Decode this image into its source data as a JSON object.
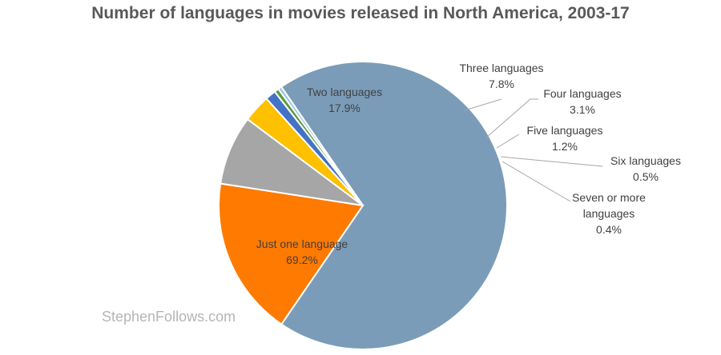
{
  "chart_data": {
    "type": "pie",
    "title": "Number of languages in movies released in North America, 2003-17",
    "slices": [
      {
        "label": "Just one language",
        "value": 69.2,
        "display": "69.2%",
        "color": "#7a9cb8",
        "label_lines": [
          "Just one language"
        ]
      },
      {
        "label": "Two languages",
        "value": 17.9,
        "display": "17.9%",
        "color": "#ff7a00",
        "label_lines": [
          "Two languages"
        ]
      },
      {
        "label": "Three languages",
        "value": 7.8,
        "display": "7.8%",
        "color": "#a6a6a6",
        "label_lines": [
          "Three languages"
        ]
      },
      {
        "label": "Four languages",
        "value": 3.1,
        "display": "3.1%",
        "color": "#ffc000",
        "label_lines": [
          "Four languages"
        ]
      },
      {
        "label": "Five languages",
        "value": 1.2,
        "display": "1.2%",
        "color": "#4472c4",
        "label_lines": [
          "Five languages"
        ]
      },
      {
        "label": "Six languages",
        "value": 0.5,
        "display": "0.5%",
        "color": "#5b9b3d",
        "label_lines": [
          "Six languages"
        ]
      },
      {
        "label": "Seven or more languages",
        "value": 0.4,
        "display": "0.4%",
        "color": "#9dc3e6",
        "label_lines": [
          "Seven or more",
          "languages"
        ]
      }
    ]
  },
  "watermark": "StephenFollows.com"
}
